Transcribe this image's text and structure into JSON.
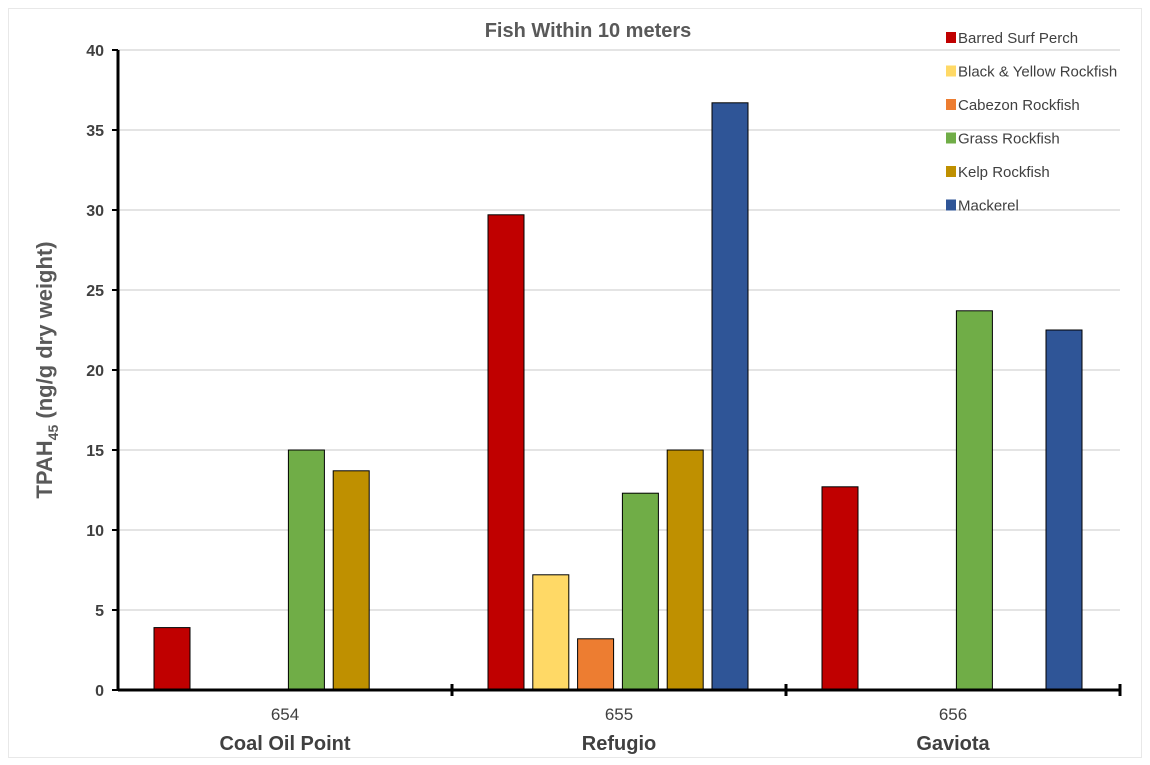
{
  "chart_data": {
    "type": "bar",
    "title": "Fish Within 10 meters",
    "ylabel_main": "TPAH",
    "ylabel_sub": "45",
    "ylabel_rest": " (ng/g dry weight)",
    "xlabel": "",
    "ylim": [
      0,
      40
    ],
    "yticks": [
      "0",
      "5",
      "10",
      "15",
      "20",
      "25",
      "30",
      "35",
      "40"
    ],
    "grid": true,
    "legend_position": "top-right",
    "categories": [
      {
        "code": "654",
        "name": "Coal Oil Point"
      },
      {
        "code": "655",
        "name": "Refugio"
      },
      {
        "code": "656",
        "name": "Gaviota"
      }
    ],
    "series": [
      {
        "name": "Barred Surf Perch",
        "color": "#c00000",
        "values": [
          3.9,
          29.7,
          12.7
        ]
      },
      {
        "name": "Black & Yellow Rockfish",
        "color": "#ffd966",
        "values": [
          null,
          7.2,
          null
        ]
      },
      {
        "name": "Cabezon Rockfish",
        "color": "#ed7d31",
        "values": [
          null,
          3.2,
          null
        ]
      },
      {
        "name": "Grass Rockfish",
        "color": "#70ad47",
        "values": [
          15.0,
          12.3,
          23.7
        ]
      },
      {
        "name": "Kelp Rockfish",
        "color": "#bf9000",
        "values": [
          13.7,
          15.0,
          null
        ]
      },
      {
        "name": "Mackerel",
        "color": "#2f5597",
        "values": [
          null,
          36.7,
          22.5
        ]
      }
    ]
  }
}
